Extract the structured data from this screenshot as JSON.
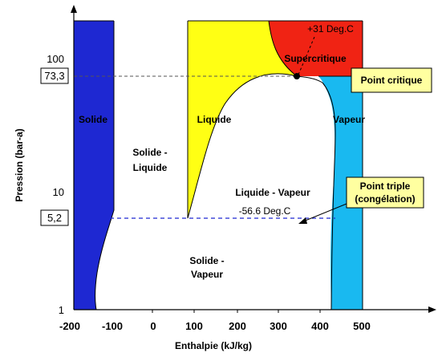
{
  "axes": {
    "x_title": "Enthalpie (kJ/kg)",
    "y_title": "Pression (bar-a)",
    "x_ticks": [
      "-200",
      "-100",
      "0",
      "100",
      "200",
      "300",
      "400",
      "500"
    ],
    "y_ticks": [
      "1",
      "10",
      "100"
    ],
    "y_highlight_ticks": [
      "73,3",
      "5,2"
    ]
  },
  "regions": {
    "solid": "Solide",
    "solid_liquid_line1": "Solide -",
    "solid_liquid_line2": "Liquide",
    "liquid": "Liquide",
    "liquid_vapor": "Liquide - Vapeur",
    "solid_vapor_line1": "Solide -",
    "solid_vapor_line2": "Vapeur",
    "vapor": "Vapeur",
    "supercritical": "Supercritique"
  },
  "annotations": {
    "critical_temp": "+31 Deg.C",
    "triple_temp": "-56.6 Deg.C"
  },
  "callouts": {
    "critical_point": "Point critique",
    "triple_point_line1": "Point triple",
    "triple_point_line2": "(congélation)"
  },
  "colors": {
    "solid": "#1e28d2",
    "liquid": "#ffff14",
    "vapor": "#19b9f0",
    "supercritical": "#f02314",
    "callout_bg": "#ffffa0"
  }
}
